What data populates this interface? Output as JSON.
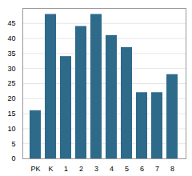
{
  "chart_data": {
    "type": "bar",
    "categories": [
      "PK",
      "K",
      "1",
      "2",
      "3",
      "4",
      "5",
      "6",
      "7",
      "8"
    ],
    "values": [
      16,
      48,
      34,
      44,
      48,
      41,
      37,
      22,
      22,
      28
    ],
    "color": "#2e6a8a",
    "ylim": [
      0,
      50
    ],
    "yticks": [
      0,
      5,
      10,
      15,
      20,
      25,
      30,
      35,
      40,
      45
    ],
    "grid": true
  }
}
